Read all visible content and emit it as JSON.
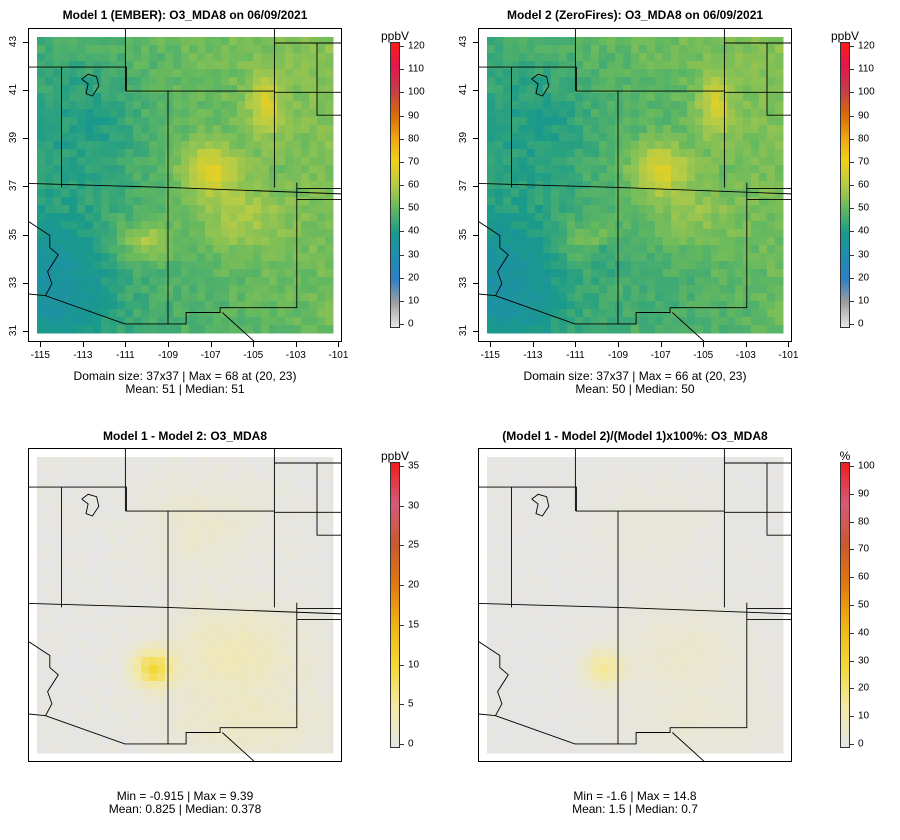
{
  "panels": [
    {
      "id": "p1",
      "title": "Model 1 (EMBER): O3_MDA8 on 06/09/2021",
      "caption_line1": "Domain size: 37x37 | Max = 68 at (20, 23)",
      "caption_line2": "Mean: 51 |  Median: 51",
      "colorbar_unit": "ppbV",
      "colorbar_labels": [
        "120",
        "110",
        "100",
        "90",
        "80",
        "70",
        "60",
        "50",
        "40",
        "30",
        "20",
        "10",
        "0"
      ],
      "show_axes": true,
      "field": "abs1"
    },
    {
      "id": "p2",
      "title": "Model 2 (ZeroFires): O3_MDA8 on 06/09/2021",
      "caption_line1": "Domain size: 37x37 | Max = 66 at (20, 23)",
      "caption_line2": "Mean: 50 |  Median: 50",
      "colorbar_unit": "ppbV",
      "colorbar_labels": [
        "120",
        "110",
        "100",
        "90",
        "80",
        "70",
        "60",
        "50",
        "40",
        "30",
        "20",
        "10",
        "0"
      ],
      "show_axes": true,
      "field": "abs2"
    },
    {
      "id": "p3",
      "title": "Model 1 - Model 2: O3_MDA8",
      "caption_line1": "Min = -0.915 | Max = 9.39",
      "caption_line2": "Mean: 0.825 |  Median: 0.378",
      "colorbar_unit": "ppbV",
      "colorbar_labels": [
        "35",
        "30",
        "25",
        "20",
        "15",
        "10",
        "5",
        "0"
      ],
      "show_axes": false,
      "field": "diff"
    },
    {
      "id": "p4",
      "title": "(Model 1 - Model 2)/(Model 1)x100%: O3_MDA8",
      "caption_line1": "Min = -1.6 | Max = 14.8",
      "caption_line2": "Mean: 1.5 |  Median: 0.7",
      "colorbar_unit": "%",
      "colorbar_labels": [
        "100",
        "90",
        "80",
        "70",
        "60",
        "50",
        "40",
        "30",
        "20",
        "10",
        "0"
      ],
      "show_axes": false,
      "field": "pct"
    }
  ],
  "axes": {
    "x_ticks": [
      "-115",
      "-113",
      "-111",
      "-109",
      "-107",
      "-105",
      "-103",
      "-101"
    ],
    "y_ticks": [
      "43",
      "41",
      "39",
      "37",
      "35",
      "33",
      "31"
    ]
  },
  "colors": {
    "abs_scale": [
      "#e8e8e8",
      "#a0a0a0",
      "#2f7fc6",
      "#1f8db0",
      "#1a9a8a",
      "#63b860",
      "#b6cc46",
      "#f1d11a",
      "#efa413",
      "#d66a0b",
      "#c33d4a",
      "#e4184d",
      "#ff1a1a"
    ],
    "diff_scale": [
      "#e5e5e5",
      "#f3e9a4",
      "#f3d936",
      "#f0b414",
      "#e07a10",
      "#c9592f",
      "#d55b7a",
      "#f01c1c"
    ],
    "land_grey": "#e6e6e6"
  }
}
